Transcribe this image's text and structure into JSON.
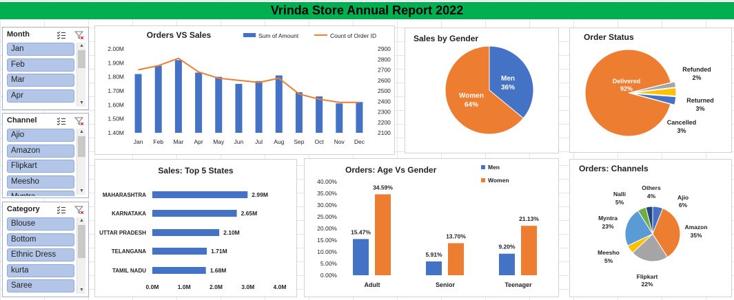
{
  "title": "Vrinda Store Annual Report 2022",
  "slicers": {
    "month": {
      "title": "Month",
      "items": [
        "Jan",
        "Feb",
        "Mar",
        "Apr"
      ]
    },
    "channel": {
      "title": "Channel",
      "items": [
        "Ajio",
        "Amazon",
        "Flipkart",
        "Meesho",
        "Myntra"
      ]
    },
    "category": {
      "title": "Category",
      "items": [
        "Blouse",
        "Bottom",
        "Ethnic Dress",
        "kurta",
        "Saree"
      ]
    }
  },
  "colors": {
    "blue": "#4472c4",
    "orange": "#ed7d31",
    "gray": "#a5a5a5",
    "yellow": "#ffc000",
    "lightblue": "#5b9bd5",
    "green": "#70ad47",
    "navy": "#264478",
    "banner": "#00b050"
  },
  "chart_data": [
    {
      "id": "orders_vs_sales",
      "type": "bar",
      "title": "Orders VS Sales",
      "categories": [
        "Jan",
        "Feb",
        "Mar",
        "Apr",
        "May",
        "Jun",
        "Jul",
        "Aug",
        "Sep",
        "Oct",
        "Nov",
        "Dec"
      ],
      "series": [
        {
          "name": "Sum of Amount",
          "kind": "bar",
          "axis": "left",
          "values": [
            1.82,
            1.88,
            1.92,
            1.83,
            1.8,
            1.75,
            1.77,
            1.81,
            1.69,
            1.66,
            1.61,
            1.62
          ]
        },
        {
          "name": "Count of Order ID",
          "kind": "line",
          "axis": "right",
          "values": [
            2700,
            2740,
            2810,
            2680,
            2620,
            2600,
            2580,
            2620,
            2470,
            2420,
            2390,
            2390
          ]
        }
      ],
      "y_left_ticks": [
        "1.40M",
        "1.50M",
        "1.60M",
        "1.70M",
        "1.80M",
        "1.90M",
        "2.00M"
      ],
      "ylim_left": [
        1.4,
        2.0
      ],
      "y_right_ticks": [
        "2100",
        "2200",
        "2300",
        "2400",
        "2500",
        "2600",
        "2700",
        "2800",
        "2900"
      ],
      "ylim_right": [
        2100,
        2900
      ],
      "legend": "top-right"
    },
    {
      "id": "sales_by_gender",
      "type": "pie",
      "title": "Sales by Gender",
      "slices": [
        {
          "label": "Men",
          "value": 36,
          "text": "36%"
        },
        {
          "label": "Women",
          "value": 64,
          "text": "64%"
        }
      ]
    },
    {
      "id": "order_status",
      "type": "pie",
      "title": "Order Status",
      "slices": [
        {
          "label": "Delivered",
          "value": 92,
          "text": "92%"
        },
        {
          "label": "Refunded",
          "value": 2,
          "text": "2%"
        },
        {
          "label": "Returned",
          "value": 3,
          "text": "3%"
        },
        {
          "label": "Cancelled",
          "value": 3,
          "text": "3%"
        }
      ]
    },
    {
      "id": "top_states",
      "type": "bar",
      "orientation": "horizontal",
      "title": "Sales: Top 5 States",
      "categories": [
        "MAHARASHTRA",
        "KARNATAKA",
        "UTTAR PRADESH",
        "TELANGANA",
        "TAMIL NADU"
      ],
      "values": [
        2.99,
        2.65,
        2.1,
        1.71,
        1.68
      ],
      "value_labels": [
        "2.99M",
        "2.65M",
        "2.10M",
        "1.71M",
        "1.68M"
      ],
      "x_ticks": [
        "0.0M",
        "1.0M",
        "2.0M",
        "3.0M",
        "4.0M"
      ],
      "xlim": [
        0,
        4
      ]
    },
    {
      "id": "age_vs_gender",
      "type": "bar",
      "title": "Orders: Age Vs Gender",
      "categories": [
        "Adult",
        "Senior",
        "Teenager"
      ],
      "series": [
        {
          "name": "Men",
          "values": [
            15.47,
            5.91,
            9.2
          ],
          "labels": [
            "15.47%",
            "5.91%",
            "9.20%"
          ]
        },
        {
          "name": "Women",
          "values": [
            34.59,
            13.7,
            21.13
          ],
          "labels": [
            "34.59%",
            "13.70%",
            "21.13%"
          ]
        }
      ],
      "y_ticks": [
        "0.00%",
        "5.00%",
        "10.00%",
        "15.00%",
        "20.00%",
        "25.00%",
        "30.00%",
        "35.00%",
        "40.00%"
      ],
      "ylim": [
        0,
        40
      ],
      "legend": "top-right"
    },
    {
      "id": "channels",
      "type": "pie",
      "title": "Orders: Channels",
      "slices": [
        {
          "label": "Ajio",
          "value": 6,
          "text": "6%"
        },
        {
          "label": "Amazon",
          "value": 35,
          "text": "35%"
        },
        {
          "label": "Flipkart",
          "value": 22,
          "text": "22%"
        },
        {
          "label": "Meesho",
          "value": 5,
          "text": "5%"
        },
        {
          "label": "Myntra",
          "value": 23,
          "text": "23%"
        },
        {
          "label": "Nalli",
          "value": 5,
          "text": "5%"
        },
        {
          "label": "Others",
          "value": 4,
          "text": "4%"
        }
      ]
    }
  ]
}
